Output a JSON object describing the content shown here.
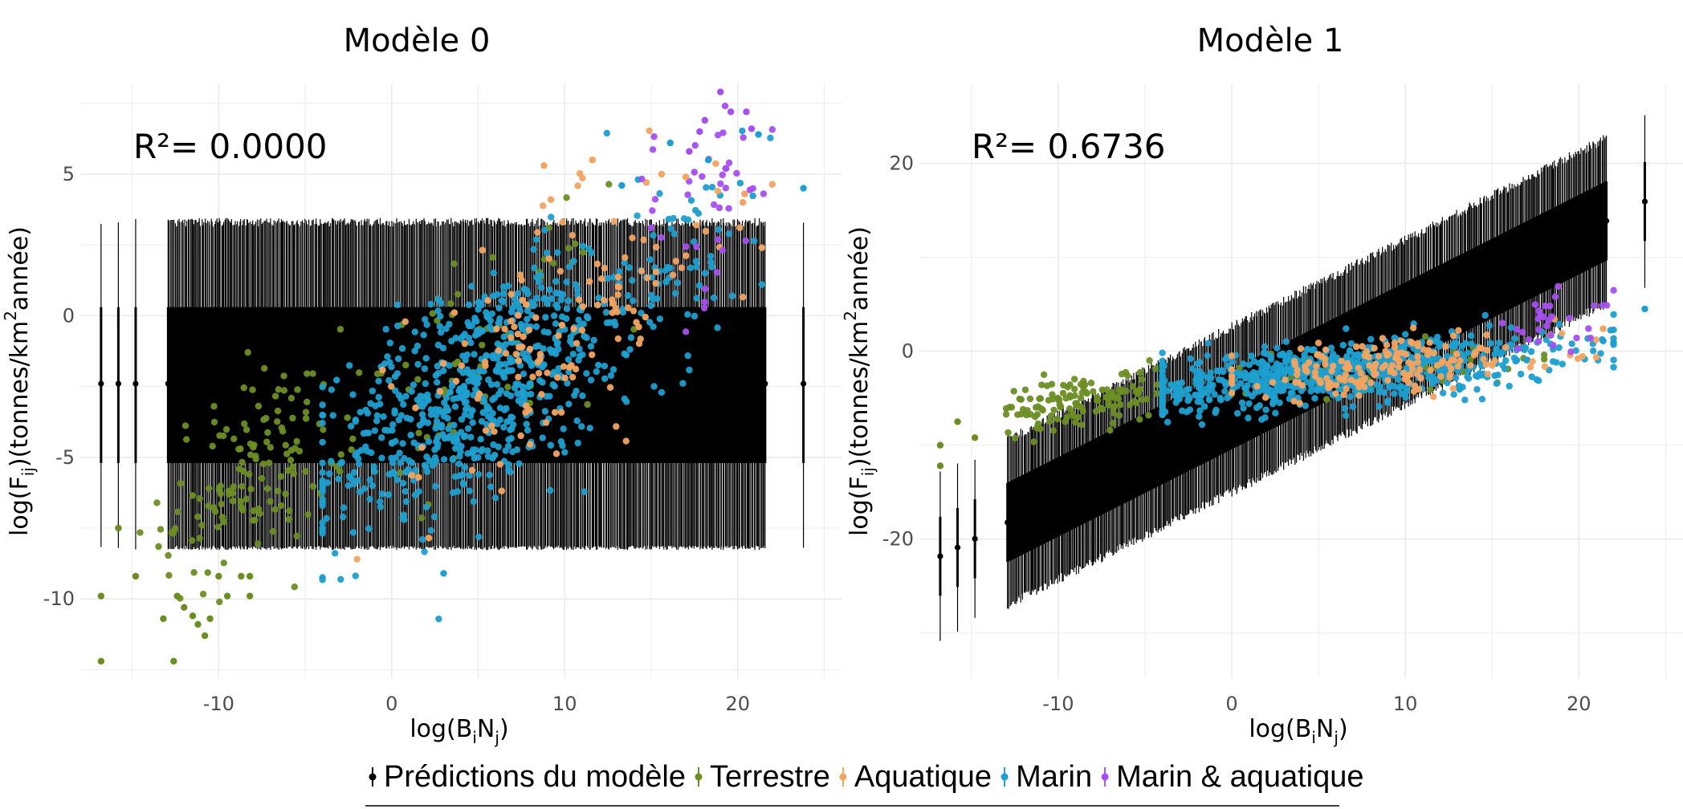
{
  "chart_data": [
    {
      "type": "scatter",
      "title": "Modèle 0",
      "r2_label": "R²= 0.0000",
      "xlabel": {
        "main": "log(B",
        "sub1": "i",
        "mid": "N",
        "sub2": "j",
        "end": ")"
      },
      "ylabel": {
        "main": "log(F",
        "sub1": "ij",
        "mid": ")(tonnes/km",
        "sup": "2",
        "end": "année)"
      },
      "xlim": [
        -18,
        26
      ],
      "ylim": [
        -12.8,
        8.2
      ],
      "x_ticks": [
        -10,
        0,
        10,
        20
      ],
      "x_tick_labels": [
        "-10",
        "0",
        "10",
        "20"
      ],
      "y_ticks": [
        5,
        0,
        -5,
        -10
      ],
      "y_tick_labels": [
        "5",
        "0",
        "-5",
        "-10"
      ],
      "grid": true,
      "prediction": {
        "mode": "constant",
        "mean": -2.4,
        "inner": [
          0.3,
          -5.2
        ],
        "outer": [
          3.3,
          -8.2
        ]
      },
      "clusters": [
        {
          "group": "Terrestre",
          "n": 140,
          "cx": -8,
          "cy": -5.5,
          "sx": 2.6,
          "sy": 1.7,
          "xmin": -16.5,
          "xmax": 10
        },
        {
          "group": "Terrestre",
          "n": 70,
          "cx": 5,
          "cy": -1.5,
          "sx": 3.5,
          "sy": 1.8,
          "xmin": -3,
          "xmax": 14
        },
        {
          "group": "Marin",
          "n": 700,
          "cx": 5,
          "cy": -2.6,
          "sx": 4.5,
          "sy": 1.9,
          "xmin": -4,
          "xmax": 22
        },
        {
          "group": "Marin",
          "n": 70,
          "cx": 16,
          "cy": 1.5,
          "sx": 3,
          "sy": 1.8,
          "xmin": 10,
          "xmax": 22
        },
        {
          "group": "Aquatique",
          "n": 140,
          "cx": 10,
          "cy": -0.3,
          "sx": 4.5,
          "sy": 2.0,
          "xmin": -2,
          "xmax": 22
        },
        {
          "group": "Marin & aquatique",
          "n": 40,
          "cx": 18,
          "cy": 4,
          "sx": 2.3,
          "sy": 1.8,
          "xmin": 12,
          "xmax": 22
        }
      ],
      "points": [
        {
          "x": -16.8,
          "y": -12.2,
          "group": "Terrestre"
        },
        {
          "x": -16.8,
          "y": -9.9,
          "group": "Terrestre"
        },
        {
          "x": -15.8,
          "y": -7.5,
          "group": "Terrestre"
        },
        {
          "x": -14.8,
          "y": -9.2,
          "group": "Terrestre"
        },
        {
          "x": -12.6,
          "y": -12.2,
          "group": "Terrestre"
        },
        {
          "x": -13.2,
          "y": -10.7,
          "group": "Terrestre"
        },
        {
          "x": -12.4,
          "y": -9.9,
          "group": "Terrestre"
        },
        {
          "x": -12.0,
          "y": -10.3,
          "group": "Terrestre"
        },
        {
          "x": -11.5,
          "y": -10.6,
          "group": "Terrestre"
        },
        {
          "x": -11.2,
          "y": -10.9,
          "group": "Terrestre"
        },
        {
          "x": -10.8,
          "y": -11.3,
          "group": "Terrestre"
        },
        {
          "x": -10.5,
          "y": -10.7,
          "group": "Terrestre"
        },
        {
          "x": -10.0,
          "y": -9.2,
          "group": "Terrestre"
        },
        {
          "x": -9.5,
          "y": -9.9,
          "group": "Terrestre"
        },
        {
          "x": -8.7,
          "y": -9.2,
          "group": "Terrestre"
        },
        {
          "x": -8.2,
          "y": -9.9,
          "group": "Terrestre"
        },
        {
          "x": -8.2,
          "y": -9.2,
          "group": "Terrestre"
        },
        {
          "x": 3.0,
          "y": -9.1,
          "group": "Marin"
        },
        {
          "x": 8.8,
          "y": 5.3,
          "group": "Aquatique"
        },
        {
          "x": 11.6,
          "y": 5.5,
          "group": "Aquatique"
        },
        {
          "x": 9.2,
          "y": 4.1,
          "group": "Aquatique"
        },
        {
          "x": 13.3,
          "y": 4.6,
          "group": "Marin"
        },
        {
          "x": 16.1,
          "y": 6.1,
          "group": "Marin"
        },
        {
          "x": 18.3,
          "y": 5.5,
          "group": "Marin"
        },
        {
          "x": 21.2,
          "y": 6.4,
          "group": "Marin"
        },
        {
          "x": 23.8,
          "y": 4.5,
          "group": "Marin"
        },
        {
          "x": 21.4,
          "y": 1.1,
          "group": "Marin"
        },
        {
          "x": 21.4,
          "y": 2.4,
          "group": "Aquatique"
        },
        {
          "x": 19.0,
          "y": 7.9,
          "group": "Marin & aquatique"
        },
        {
          "x": 20.5,
          "y": 7.2,
          "group": "Marin & aquatique"
        },
        {
          "x": 19.6,
          "y": 7.2,
          "group": "Marin & aquatique"
        },
        {
          "x": 18.1,
          "y": 6.9,
          "group": "Marin & aquatique"
        },
        {
          "x": 17.8,
          "y": 6.5,
          "group": "Marin & aquatique"
        },
        {
          "x": 20.8,
          "y": 6.6,
          "group": "Marin & aquatique"
        },
        {
          "x": 17.2,
          "y": 5.8,
          "group": "Marin & aquatique"
        },
        {
          "x": 19.3,
          "y": 5.2,
          "group": "Marin & aquatique"
        },
        {
          "x": 17.0,
          "y": 4.9,
          "group": "Aquatique"
        },
        {
          "x": 15.6,
          "y": 5.0,
          "group": "Aquatique"
        },
        {
          "x": 20.4,
          "y": 4.3,
          "group": "Aquatique"
        },
        {
          "x": 20.3,
          "y": 4.0,
          "group": "Aquatique"
        }
      ]
    },
    {
      "type": "scatter",
      "title": "Modèle 1",
      "r2_label": "R²= 0.6736",
      "xlabel": {
        "main": "log(B",
        "sub1": "i",
        "mid": "N",
        "sub2": "j",
        "end": ")"
      },
      "ylabel": {
        "main": "log(F",
        "sub1": "ij",
        "mid": ")(tonnes/km",
        "sup": "2",
        "end": "année)"
      },
      "xlim": [
        -18,
        26
      ],
      "ylim": [
        -34.8,
        28.5
      ],
      "x_ticks": [
        -10,
        0,
        10,
        20
      ],
      "x_tick_labels": [
        "-10",
        "0",
        "10",
        "20"
      ],
      "y_ticks": [
        20,
        0,
        -20
      ],
      "y_tick_labels": [
        "20",
        "0",
        "-20"
      ],
      "grid": true,
      "prediction": {
        "mode": "linear",
        "intercept": -6.2,
        "slope": 0.93,
        "inner_half": 4.2,
        "outer_half": 8.8
      },
      "clusters": [
        {
          "group": "Terrestre",
          "n": 140,
          "cx": -8.5,
          "cy": -5.3,
          "sx": 2.5,
          "sy": 1.4,
          "xmin": -13,
          "xmax": -4
        },
        {
          "group": "Terrestre",
          "n": 60,
          "cx": 8,
          "cy": -2,
          "sx": 5,
          "sy": 1.2,
          "xmin": -3,
          "xmax": 18
        },
        {
          "group": "Marin",
          "n": 820,
          "cx": 6,
          "cy": -2.3,
          "sx": 6.5,
          "sy": 1.6,
          "xmin": -4,
          "xmax": 22
        },
        {
          "group": "Aquatique",
          "n": 180,
          "cx": 9,
          "cy": -1.6,
          "sx": 5,
          "sy": 1.5,
          "xmin": 0,
          "xmax": 21
        },
        {
          "group": "Marin & aquatique",
          "n": 30,
          "cx": 18.5,
          "cy": 3.0,
          "sx": 1.8,
          "sy": 1.5,
          "xmin": 14,
          "xmax": 22
        }
      ],
      "points": [
        {
          "x": -16.8,
          "y": -10.0,
          "group": "Terrestre"
        },
        {
          "x": -16.8,
          "y": -12.2,
          "group": "Terrestre"
        },
        {
          "x": -15.8,
          "y": -7.5,
          "group": "Terrestre"
        },
        {
          "x": -14.8,
          "y": -9.2,
          "group": "Terrestre"
        },
        {
          "x": 23.8,
          "y": 4.5,
          "group": "Marin"
        },
        {
          "x": 21.4,
          "y": 1.1,
          "group": "Marin"
        },
        {
          "x": 21.4,
          "y": 2.4,
          "group": "Aquatique"
        }
      ]
    }
  ],
  "legend": {
    "position": "bottom",
    "items": [
      {
        "label": "Prédictions du modèle",
        "color": "#000000"
      },
      {
        "label": "Terrestre",
        "color": "#6b8e23"
      },
      {
        "label": "Aquatique",
        "color": "#f4a460"
      },
      {
        "label": "Marin",
        "color": "#1e9fd0"
      },
      {
        "label": "Marin & aquatique",
        "color": "#a64ef0"
      }
    ]
  },
  "colors": {
    "Terrestre": "#6b8e23",
    "Aquatique": "#f4a460",
    "Marin": "#1e9fd0",
    "Marin & aquatique": "#a64ef0",
    "prediction": "#000000",
    "grid": "#ebebeb",
    "axis_text": "#4d4d4d"
  }
}
